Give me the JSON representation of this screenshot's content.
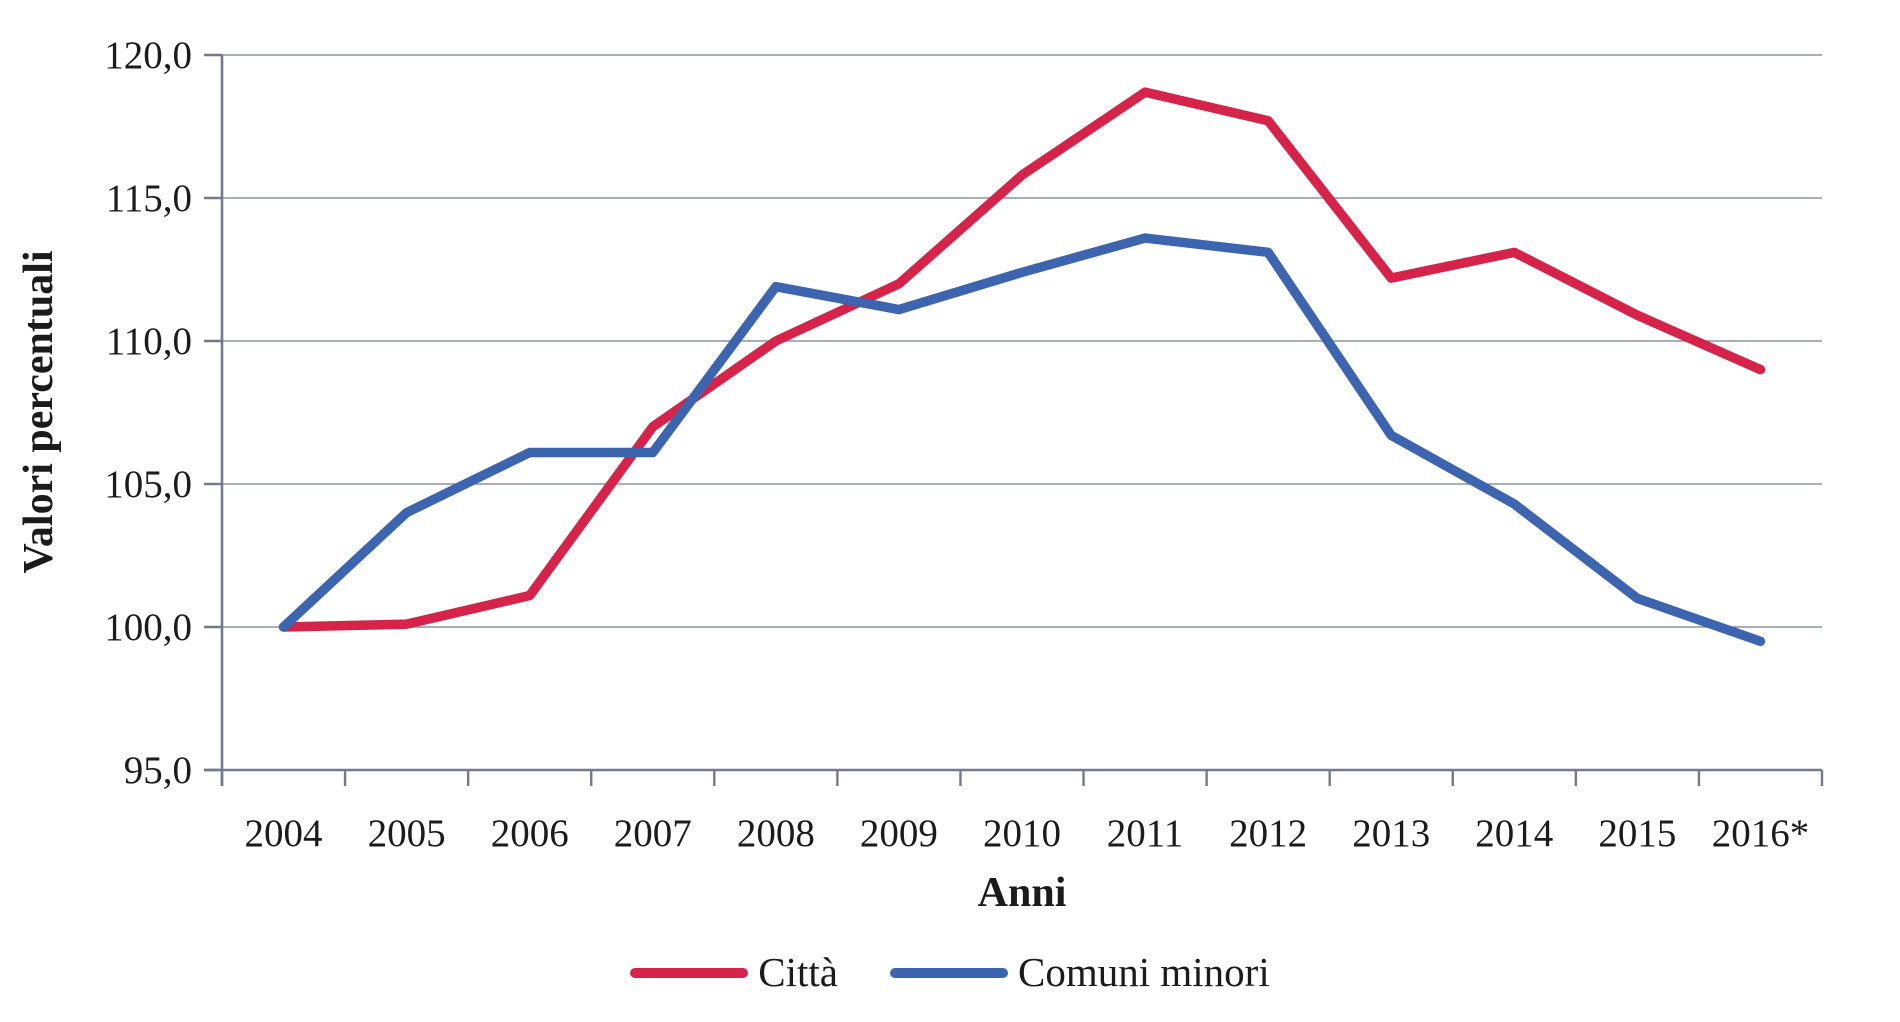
{
  "chart_data": {
    "type": "line",
    "categories": [
      "2004",
      "2005",
      "2006",
      "2007",
      "2008",
      "2009",
      "2010",
      "2011",
      "2012",
      "2013",
      "2014",
      "2015",
      "2016*"
    ],
    "series": [
      {
        "name": "Città",
        "color": "#d62349",
        "values": [
          100.0,
          100.1,
          101.1,
          107.0,
          110.0,
          112.0,
          115.8,
          118.7,
          117.7,
          112.2,
          113.1,
          110.9,
          109.0
        ]
      },
      {
        "name": "Comuni minori",
        "color": "#3d64ae",
        "values": [
          100.0,
          104.0,
          106.1,
          106.1,
          111.9,
          111.1,
          112.4,
          113.6,
          113.1,
          106.7,
          104.3,
          101.0,
          99.5
        ]
      }
    ],
    "xlabel": "Anni",
    "ylabel": "Valori percentuali",
    "ylim": [
      95,
      120
    ],
    "yticks": [
      95,
      100,
      105,
      110,
      115,
      120
    ],
    "ytick_labels": [
      "95,0",
      "100,0",
      "105,0",
      "110,0",
      "115,0",
      "120,0"
    ],
    "grid": true,
    "legend_position": "bottom",
    "colors": {
      "grid": "#8d93a6",
      "axis": "#75798a",
      "text": "#1b1b1b"
    }
  }
}
